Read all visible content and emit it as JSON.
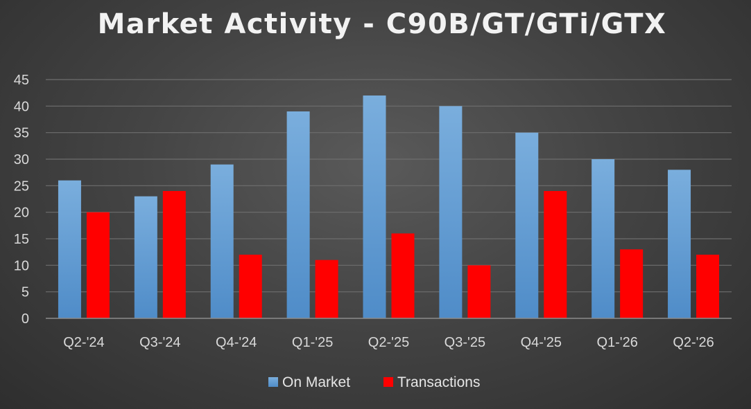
{
  "chart_data": {
    "type": "bar",
    "title": "Market Activity - C90B/GT/GTi/GTX",
    "categories": [
      "Q2-'24",
      "Q3-'24",
      "Q4-'24",
      "Q1-'25",
      "Q2-'25",
      "Q3-'25",
      "Q4-'25",
      "Q1-'26",
      "Q2-'26"
    ],
    "series": [
      {
        "name": "On Market",
        "values": [
          26,
          23,
          29,
          39,
          42,
          40,
          35,
          30,
          28
        ],
        "color": "#5b9bd5"
      },
      {
        "name": "Transactions",
        "values": [
          20,
          24,
          12,
          11,
          16,
          10,
          24,
          13,
          12
        ],
        "color": "#ff0000"
      }
    ],
    "ylim": [
      0,
      45
    ],
    "yticks": [
      0,
      5,
      10,
      15,
      20,
      25,
      30,
      35,
      40,
      45
    ],
    "grid": true,
    "legend_position": "bottom"
  }
}
